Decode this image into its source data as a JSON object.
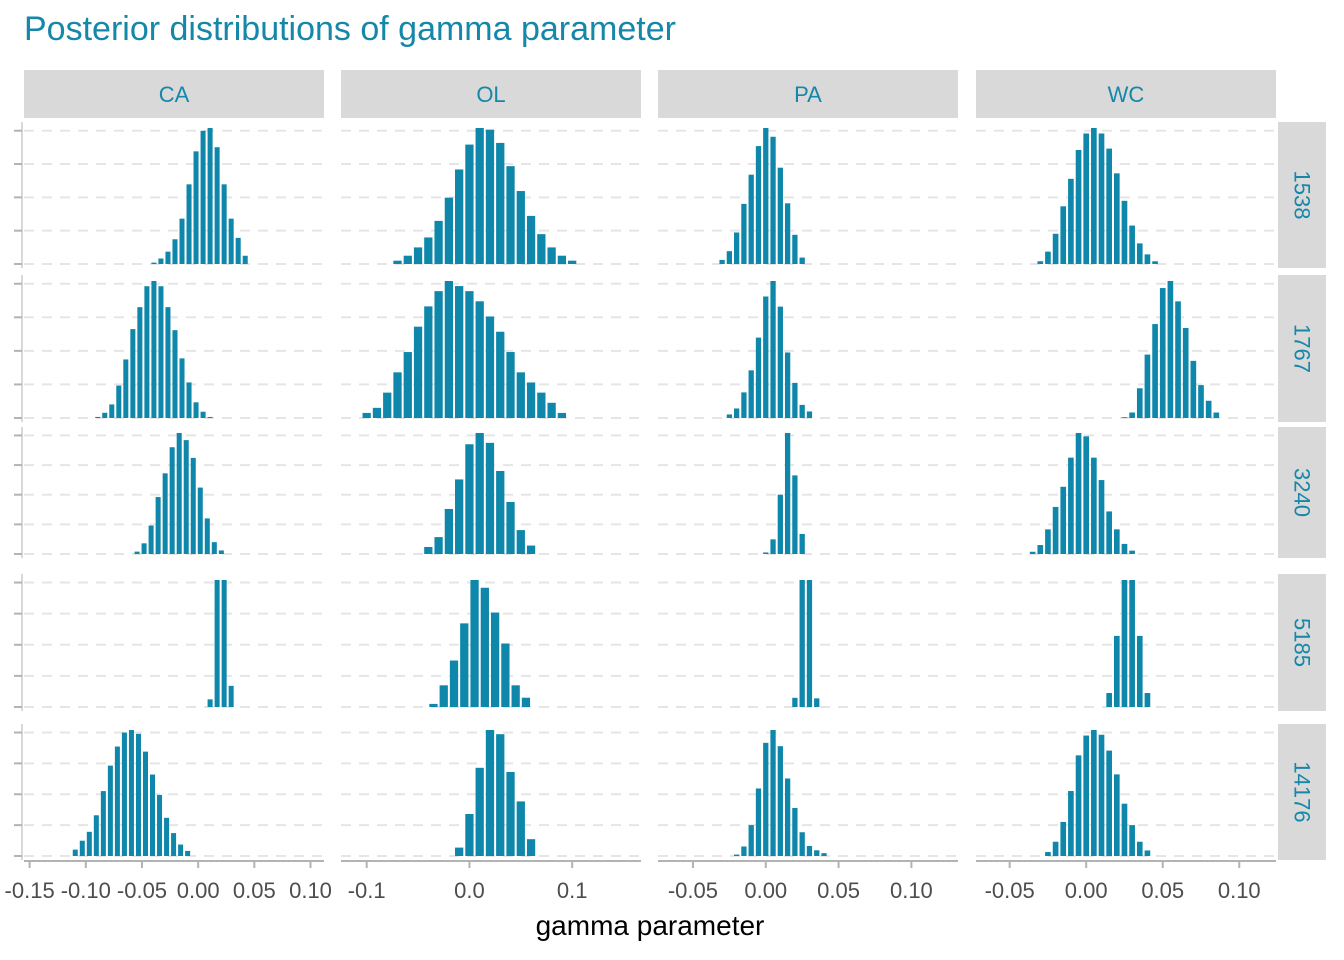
{
  "chart_data": {
    "type": "bar",
    "title": "Posterior distributions of gamma parameter",
    "xlabel": "gamma parameter",
    "ylabel": "",
    "grid": true,
    "legend": "none",
    "colors": {
      "bar": "#0f87aa",
      "strip": "#d9d9d9",
      "strip_text": "#1587a8",
      "title": "#1587a8",
      "grid": "#e5e5e5",
      "axis_text": "#4d4d4d"
    },
    "columns": [
      {
        "label": "CA",
        "xlim": [
          -0.155,
          0.112
        ],
        "ticks": [
          -0.15,
          -0.1,
          -0.05,
          0.0,
          0.05,
          0.1
        ],
        "tick_labels": [
          "-0.15",
          "-0.10",
          "-0.05",
          "0.00",
          "0.05",
          "0.10"
        ]
      },
      {
        "label": "OL",
        "xlim": [
          -0.125,
          0.167
        ],
        "ticks": [
          -0.1,
          0.0,
          0.1
        ],
        "tick_labels": [
          "-0.1",
          "0.0",
          "0.1"
        ]
      },
      {
        "label": "PA",
        "xlim": [
          -0.074,
          0.132
        ],
        "ticks": [
          -0.05,
          0.0,
          0.05,
          0.1
        ],
        "tick_labels": [
          "-0.05",
          "0.00",
          "0.05",
          "0.10"
        ]
      },
      {
        "label": "WC",
        "xlim": [
          -0.072,
          0.124
        ],
        "ticks": [
          -0.05,
          0.0,
          0.05,
          0.1
        ],
        "tick_labels": [
          "-0.05",
          "0.00",
          "0.05",
          "0.10"
        ]
      }
    ],
    "rows": [
      "1538",
      "1767",
      "3240",
      "5185",
      "14176"
    ],
    "bin_width": {
      "CA": 0.00625,
      "OL": 0.01,
      "PA": 0.005,
      "WC": 0.005
    },
    "panels": [
      [
        {
          "start": -0.0425,
          "counts": [
            1,
            4,
            9,
            18,
            33,
            58,
            82,
            97,
            99,
            85,
            58,
            33,
            19,
            6
          ]
        },
        {
          "start": -0.0925,
          "counts": [
            1,
            5,
            13,
            31,
            56,
            85,
            106,
            126,
            131,
            126,
            106,
            84,
            57,
            34,
            15,
            6,
            1
          ]
        },
        {
          "start": -0.0575,
          "counts": [
            2,
            9,
            24,
            48,
            68,
            90,
            102,
            96,
            81,
            56,
            30,
            10,
            3
          ]
        },
        {
          "start": 0.0075,
          "counts": [
            13,
            216,
            216,
            36
          ]
        },
        {
          "start": -0.1125,
          "counts": [
            5,
            12,
            19,
            32,
            51,
            71,
            86,
            97,
            99,
            96,
            82,
            64,
            48,
            30,
            18,
            9,
            4
          ]
        }
      ],
      [
        {
          "start": -0.075,
          "counts": [
            2,
            5,
            10,
            16,
            26,
            40,
            57,
            72,
            82,
            81,
            73,
            59,
            44,
            29,
            18,
            10,
            5,
            2
          ]
        },
        {
          "start": -0.105,
          "counts": [
            1,
            2,
            5,
            9,
            13,
            18,
            22,
            25,
            27,
            26,
            25,
            23,
            20,
            17,
            13,
            9,
            7,
            5,
            3,
            1
          ]
        },
        {
          "start": -0.045,
          "counts": [
            5,
            12,
            32,
            53,
            78,
            86,
            79,
            59,
            37,
            17,
            6
          ]
        },
        {
          "start": -0.04,
          "counts": [
            2,
            14,
            30,
            54,
            82,
            77,
            61,
            41,
            14,
            6
          ]
        },
        {
          "start": -0.015,
          "counts": [
            2,
            10,
            21,
            30,
            29,
            20,
            13,
            4
          ]
        }
      ],
      [
        {
          "start": -0.0325,
          "counts": [
            7,
            22,
            54,
            103,
            153,
            202,
            233,
            218,
            165,
            104,
            50,
            11
          ]
        },
        {
          "start": -0.0275,
          "counts": [
            6,
            16,
            43,
            80,
            135,
            204,
            230,
            187,
            110,
            59,
            22,
            11
          ]
        },
        {
          "start": -0.0025,
          "counts": [
            2,
            19,
            77,
            157,
            102,
            26
          ]
        },
        {
          "start": 0.0175,
          "counts": [
            17,
            235,
            235,
            16
          ]
        },
        {
          "start": -0.0225,
          "counts": [
            3,
            20,
            65,
            142,
            238,
            265,
            231,
            163,
            101,
            50,
            21,
            12,
            6
          ]
        }
      ],
      [
        {
          "start": -0.0325,
          "counts": [
            2,
            9,
            22,
            42,
            62,
            83,
            95,
            99,
            95,
            84,
            66,
            46,
            28,
            15,
            7,
            2
          ]
        },
        {
          "start": 0.0225,
          "counts": [
            1,
            7,
            38,
            81,
            120,
            166,
            175,
            149,
            115,
            73,
            42,
            22,
            7
          ]
        },
        {
          "start": -0.0375,
          "counts": [
            2,
            8,
            22,
            42,
            60,
            86,
            108,
            105,
            86,
            66,
            38,
            22,
            9,
            3
          ]
        },
        {
          "start": 0.0125,
          "counts": [
            11,
            56,
            100,
            100,
            56,
            11
          ]
        },
        {
          "start": -0.0275,
          "counts": [
            5,
            18,
            43,
            82,
            127,
            152,
            159,
            153,
            133,
            103,
            66,
            39,
            18,
            7
          ]
        }
      ]
    ]
  }
}
